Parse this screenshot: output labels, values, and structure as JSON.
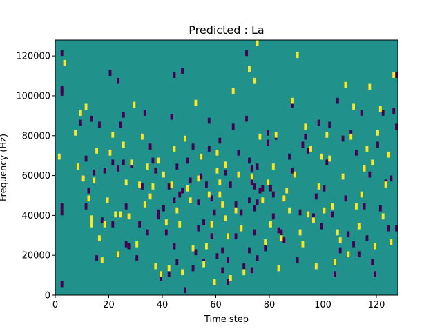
{
  "chart_data": {
    "type": "heatmap",
    "title": "Predicted : La",
    "xlabel": "Time step",
    "ylabel": "Frequency (Hz)",
    "xlim": [
      0,
      128
    ],
    "ylim": [
      0,
      128000
    ],
    "x_ticks": [
      0,
      20,
      40,
      60,
      80,
      100,
      120
    ],
    "y_ticks": [
      0,
      20000,
      40000,
      60000,
      80000,
      100000,
      120000
    ],
    "cells_x": 128,
    "cells_y": 128,
    "values": [
      0,
      1,
      2
    ],
    "colors": {
      "0": "#440154",
      "1": "#21918c",
      "2": "#fde725"
    },
    "background_value": 1,
    "low_marks": [
      [
        2,
        121000
      ],
      [
        2,
        103000
      ],
      [
        2,
        102000
      ],
      [
        2,
        101000
      ],
      [
        2,
        44000
      ],
      [
        2,
        41000
      ],
      [
        2,
        5000
      ],
      [
        9,
        86000
      ],
      [
        11,
        68000
      ],
      [
        11,
        44000
      ],
      [
        12,
        52000
      ],
      [
        13,
        88000
      ],
      [
        14,
        61000
      ],
      [
        15,
        18000
      ],
      [
        16,
        85000
      ],
      [
        17,
        37000
      ],
      [
        18,
        62000
      ],
      [
        20,
        111000
      ],
      [
        21,
        66000
      ],
      [
        21,
        35000
      ],
      [
        23,
        107000
      ],
      [
        23,
        63000
      ],
      [
        24,
        85000
      ],
      [
        25,
        90000
      ],
      [
        25,
        66000
      ],
      [
        26,
        44000
      ],
      [
        26,
        25000
      ],
      [
        27,
        24000
      ],
      [
        28,
        65000
      ],
      [
        30,
        18000
      ],
      [
        31,
        35000
      ],
      [
        32,
        54000
      ],
      [
        33,
        91000
      ],
      [
        34,
        31000
      ],
      [
        35,
        74000
      ],
      [
        36,
        67000
      ],
      [
        37,
        62000
      ],
      [
        38,
        41000
      ],
      [
        38,
        39000
      ],
      [
        39,
        8000
      ],
      [
        40,
        43000
      ],
      [
        41,
        31000
      ],
      [
        42,
        54000
      ],
      [
        42,
        10000
      ],
      [
        43,
        89000
      ],
      [
        44,
        110000
      ],
      [
        44,
        47000
      ],
      [
        44,
        24000
      ],
      [
        45,
        64000
      ],
      [
        45,
        16000
      ],
      [
        46,
        50000
      ],
      [
        47,
        112000
      ],
      [
        47,
        52000
      ],
      [
        48,
        2000
      ],
      [
        49,
        67000
      ],
      [
        50,
        57000
      ],
      [
        51,
        74000
      ],
      [
        51,
        13000
      ],
      [
        52,
        21000
      ],
      [
        53,
        46000
      ],
      [
        53,
        33000
      ],
      [
        54,
        59000
      ],
      [
        55,
        36000
      ],
      [
        55,
        16000
      ],
      [
        56,
        55000
      ],
      [
        57,
        87000
      ],
      [
        57,
        73000
      ],
      [
        58,
        48000
      ],
      [
        58,
        29000
      ],
      [
        59,
        41000
      ],
      [
        60,
        19000
      ],
      [
        61,
        77000
      ],
      [
        62,
        22000
      ],
      [
        62,
        12000
      ],
      [
        63,
        61000
      ],
      [
        64,
        17000
      ],
      [
        64,
        6000
      ],
      [
        65,
        55000
      ],
      [
        66,
        84000
      ],
      [
        67,
        45000
      ],
      [
        67,
        29000
      ],
      [
        68,
        71000
      ],
      [
        69,
        41000
      ],
      [
        70,
        14000
      ],
      [
        71,
        121000
      ],
      [
        71,
        88000
      ],
      [
        72,
        67000
      ],
      [
        72,
        47000
      ],
      [
        72,
        22000
      ],
      [
        73,
        63000
      ],
      [
        73,
        56000
      ],
      [
        73,
        12000
      ],
      [
        74,
        54000
      ],
      [
        74,
        43000
      ],
      [
        74,
        31000
      ],
      [
        75,
        64000
      ],
      [
        75,
        46000
      ],
      [
        75,
        18000
      ],
      [
        76,
        52000
      ],
      [
        77,
        53000
      ],
      [
        78,
        23000
      ],
      [
        79,
        81000
      ],
      [
        79,
        76000
      ],
      [
        80,
        53000
      ],
      [
        81,
        50000
      ],
      [
        81,
        39000
      ],
      [
        82,
        79000
      ],
      [
        83,
        32000
      ],
      [
        84,
        31000
      ],
      [
        85,
        27000
      ],
      [
        86,
        52000
      ],
      [
        87,
        69000
      ],
      [
        88,
        95000
      ],
      [
        88,
        62000
      ],
      [
        90,
        17000
      ],
      [
        91,
        41000
      ],
      [
        92,
        75000
      ],
      [
        93,
        79000
      ],
      [
        94,
        72000
      ],
      [
        96,
        39000
      ],
      [
        96,
        38000
      ],
      [
        97,
        49000
      ],
      [
        98,
        86000
      ],
      [
        99,
        34000
      ],
      [
        100,
        53000
      ],
      [
        101,
        66000
      ],
      [
        102,
        85000
      ],
      [
        103,
        40000
      ],
      [
        104,
        10000
      ],
      [
        105,
        97000
      ],
      [
        106,
        22000
      ],
      [
        107,
        78000
      ],
      [
        108,
        48000
      ],
      [
        109,
        30000
      ],
      [
        110,
        81000
      ],
      [
        111,
        25000
      ],
      [
        112,
        71000
      ],
      [
        113,
        20000
      ],
      [
        114,
        91000
      ],
      [
        115,
        44000
      ],
      [
        116,
        28000
      ],
      [
        117,
        60000
      ],
      [
        118,
        16000
      ],
      [
        119,
        10000
      ],
      [
        120,
        75000
      ],
      [
        121,
        43000
      ],
      [
        122,
        91000
      ],
      [
        123,
        56000
      ],
      [
        124,
        33000
      ],
      [
        125,
        58000
      ],
      [
        126,
        92000
      ],
      [
        127,
        33000
      ],
      [
        127,
        84000
      ],
      [
        127,
        110000
      ]
    ],
    "high_marks": [
      [
        1,
        69000
      ],
      [
        3,
        116000
      ],
      [
        7,
        81000
      ],
      [
        8,
        64000
      ],
      [
        9,
        91000
      ],
      [
        10,
        58000
      ],
      [
        11,
        94000
      ],
      [
        12,
        48000
      ],
      [
        13,
        38000
      ],
      [
        13,
        35000
      ],
      [
        14,
        57000
      ],
      [
        15,
        72000
      ],
      [
        16,
        28000
      ],
      [
        17,
        17000
      ],
      [
        18,
        35000
      ],
      [
        19,
        47000
      ],
      [
        20,
        71000
      ],
      [
        21,
        80000
      ],
      [
        22,
        40000
      ],
      [
        23,
        20000
      ],
      [
        24,
        40000
      ],
      [
        25,
        75000
      ],
      [
        26,
        56000
      ],
      [
        27,
        39000
      ],
      [
        28,
        66000
      ],
      [
        29,
        95000
      ],
      [
        30,
        25000
      ],
      [
        31,
        55000
      ],
      [
        32,
        79000
      ],
      [
        33,
        45000
      ],
      [
        34,
        64000
      ],
      [
        35,
        49000
      ],
      [
        36,
        54000
      ],
      [
        37,
        14000
      ],
      [
        38,
        67000
      ],
      [
        39,
        10000
      ],
      [
        40,
        60000
      ],
      [
        41,
        36000
      ],
      [
        42,
        13000
      ],
      [
        43,
        55000
      ],
      [
        44,
        73000
      ],
      [
        45,
        42000
      ],
      [
        46,
        35000
      ],
      [
        47,
        11000
      ],
      [
        48,
        78000
      ],
      [
        49,
        53000
      ],
      [
        50,
        47000
      ],
      [
        51,
        23000
      ],
      [
        52,
        96000
      ],
      [
        53,
        58000
      ],
      [
        54,
        69000
      ],
      [
        55,
        15000
      ],
      [
        56,
        24000
      ],
      [
        57,
        50000
      ],
      [
        58,
        35000
      ],
      [
        59,
        6000
      ],
      [
        60,
        71000
      ],
      [
        60,
        62000
      ],
      [
        61,
        56000
      ],
      [
        61,
        50000
      ],
      [
        62,
        45000
      ],
      [
        63,
        38000
      ],
      [
        63,
        65000
      ],
      [
        64,
        29000
      ],
      [
        65,
        8000
      ],
      [
        66,
        102000
      ],
      [
        67,
        42000
      ],
      [
        68,
        60000
      ],
      [
        69,
        33000
      ],
      [
        70,
        11000
      ],
      [
        72,
        113000
      ],
      [
        73,
        59000
      ],
      [
        74,
        107000
      ],
      [
        75,
        126000
      ],
      [
        76,
        79000
      ],
      [
        77,
        47000
      ],
      [
        78,
        26000
      ],
      [
        79,
        56000
      ],
      [
        80,
        35000
      ],
      [
        81,
        64000
      ],
      [
        82,
        80000
      ],
      [
        83,
        13000
      ],
      [
        84,
        28000
      ],
      [
        85,
        48000
      ],
      [
        86,
        52000
      ],
      [
        87,
        42000
      ],
      [
        88,
        97000
      ],
      [
        89,
        60000
      ],
      [
        90,
        120000
      ],
      [
        91,
        31000
      ],
      [
        92,
        25000
      ],
      [
        93,
        84000
      ],
      [
        94,
        40000
      ],
      [
        95,
        73000
      ],
      [
        96,
        37000
      ],
      [
        97,
        14000
      ],
      [
        98,
        54000
      ],
      [
        99,
        69000
      ],
      [
        100,
        42000
      ],
      [
        101,
        80000
      ],
      [
        102,
        68000
      ],
      [
        103,
        44000
      ],
      [
        104,
        16000
      ],
      [
        105,
        31000
      ],
      [
        106,
        27000
      ],
      [
        107,
        59000
      ],
      [
        108,
        105000
      ],
      [
        109,
        20000
      ],
      [
        110,
        79000
      ],
      [
        111,
        94000
      ],
      [
        112,
        44000
      ],
      [
        113,
        34000
      ],
      [
        114,
        50000
      ],
      [
        115,
        63000
      ],
      [
        116,
        73000
      ],
      [
        117,
        104000
      ],
      [
        118,
        66000
      ],
      [
        119,
        24000
      ],
      [
        120,
        81000
      ],
      [
        121,
        93000
      ],
      [
        122,
        39000
      ],
      [
        123,
        55000
      ],
      [
        124,
        70000
      ],
      [
        125,
        26000
      ],
      [
        126,
        110000
      ]
    ]
  }
}
